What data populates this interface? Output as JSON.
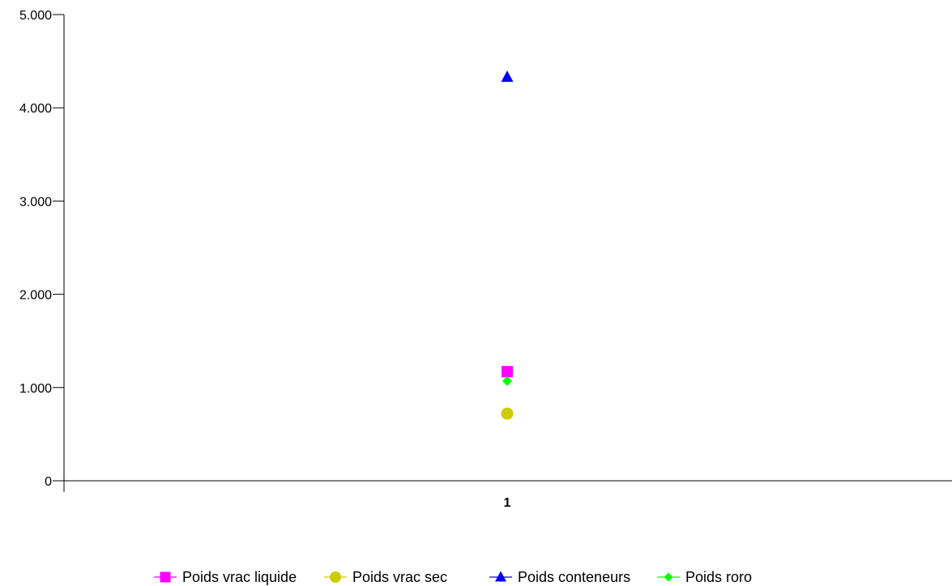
{
  "chart_data": {
    "type": "scatter",
    "categories": [
      "1"
    ],
    "y_ticks": [
      "0",
      "1.000",
      "2.000",
      "3.000",
      "4.000",
      "5.000"
    ],
    "ylim": [
      0,
      5000
    ],
    "grid": false,
    "legend_position": "bottom",
    "series": [
      {
        "name": "Poids vrac liquide",
        "values": [
          1170
        ],
        "color": "#ff00ff",
        "marker": "square"
      },
      {
        "name": "Poids vrac sec",
        "values": [
          720
        ],
        "color": "#cccc00",
        "marker": "circle"
      },
      {
        "name": "Poids conteneurs",
        "values": [
          4330
        ],
        "color": "#0000ff",
        "marker": "triangle"
      },
      {
        "name": "Poids roro",
        "values": [
          1070
        ],
        "color": "#00ff00",
        "marker": "diamond"
      }
    ]
  }
}
